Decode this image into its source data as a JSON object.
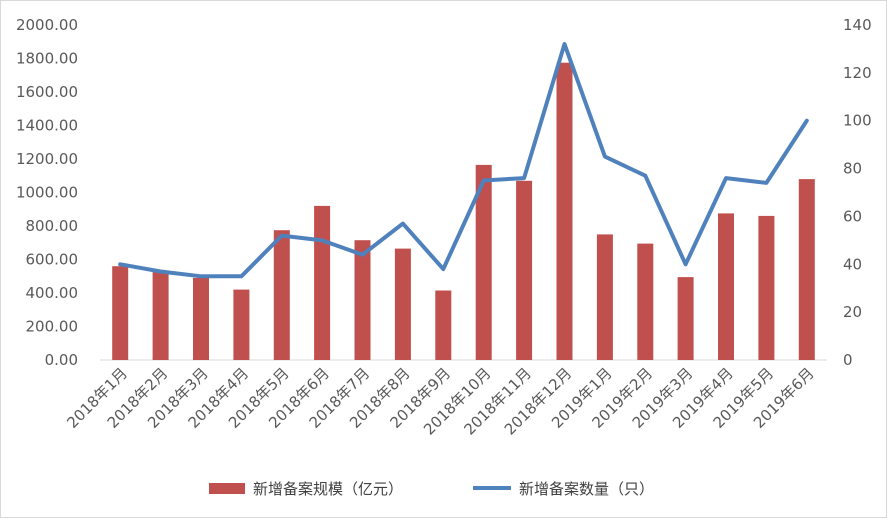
{
  "chart_data": {
    "type": "bar+line",
    "categories": [
      "2018年1月",
      "2018年2月",
      "2018年3月",
      "2018年4月",
      "2018年5月",
      "2018年6月",
      "2018年7月",
      "2018年8月",
      "2018年9月",
      "2018年10月",
      "2018年11月",
      "2018年12月",
      "2019年1月",
      "2019年2月",
      "2019年3月",
      "2019年4月",
      "2019年5月",
      "2019年6月"
    ],
    "series": [
      {
        "name": "新增备案规模（亿元）",
        "kind": "bar",
        "axis": "left",
        "color": "#c0504d",
        "values": [
          560,
          525,
          490,
          420,
          775,
          920,
          715,
          665,
          415,
          1165,
          1070,
          1775,
          750,
          695,
          495,
          875,
          860,
          1080
        ]
      },
      {
        "name": "新增备案数量（只）",
        "kind": "line",
        "axis": "right",
        "color": "#4f81bd",
        "values": [
          40,
          37,
          35,
          35,
          52,
          50,
          44,
          57,
          38,
          75,
          76,
          132,
          85,
          77,
          40,
          76,
          74,
          100
        ]
      }
    ],
    "y_left": {
      "min": 0,
      "max": 2000,
      "step": 200,
      "tick_labels": [
        "0.00",
        "200.00",
        "400.00",
        "600.00",
        "800.00",
        "1000.00",
        "1200.00",
        "1400.00",
        "1600.00",
        "1800.00",
        "2000.00"
      ]
    },
    "y_right": {
      "min": 0,
      "max": 140,
      "step": 20,
      "tick_labels": [
        "0",
        "20",
        "40",
        "60",
        "80",
        "100",
        "120",
        "140"
      ]
    },
    "grid": false,
    "legend_position": "bottom"
  }
}
